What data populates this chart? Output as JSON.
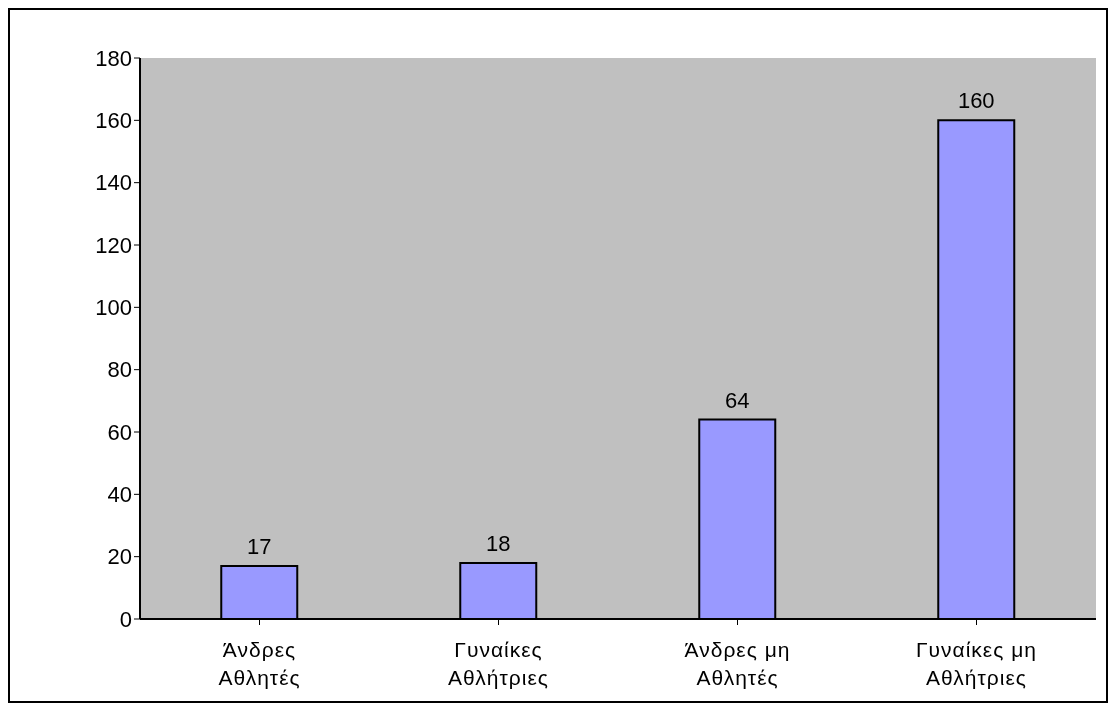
{
  "chart_data": {
    "type": "bar",
    "categories": [
      "Άνδρες Αθλητές",
      "Γυναίκες Αθλήτριες",
      "Άνδρες μη Αθλητές",
      "Γυναίκες μη Αθλήτριες"
    ],
    "values": [
      17,
      18,
      64,
      160
    ],
    "color": "#9999ff",
    "ylim": [
      0,
      180
    ],
    "yticks": [
      0,
      20,
      40,
      60,
      80,
      100,
      120,
      140,
      160,
      180
    ],
    "grid": false,
    "data_labels": true
  }
}
